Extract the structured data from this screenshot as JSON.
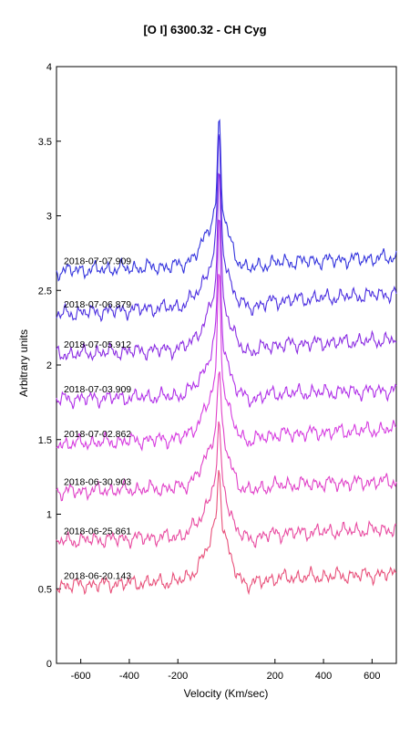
{
  "chart_data": {
    "type": "line",
    "title": "[O I] 6300.32 - CH Cyg",
    "xlabel": "Velocity (Km/sec)",
    "ylabel": "Arbitrary units",
    "xlim": [
      -700,
      700
    ],
    "ylim": [
      0,
      4
    ],
    "xticks": [
      -600,
      -400,
      -200,
      200,
      400,
      600
    ],
    "yticks": [
      0,
      0.5,
      1,
      1.5,
      2,
      2.5,
      3,
      3.5,
      4
    ],
    "xtick_labels": [
      "-600",
      "-400",
      "-200",
      "200",
      "400",
      "600"
    ],
    "ytick_labels": [
      "0",
      "0.5",
      "1",
      "1.5",
      "2",
      "2.5",
      "3",
      "3.5",
      "4"
    ],
    "grid": false,
    "legend": "none",
    "series": [
      {
        "name": "2018-07-07.909",
        "color": "#3333dd",
        "baseline": 2.63,
        "peak": 1.02,
        "tail": 2.72,
        "seed": 11
      },
      {
        "name": "2018-07-06.879",
        "color": "#4b2ee0",
        "baseline": 2.34,
        "peak": 1.2,
        "tail": 2.48,
        "seed": 23
      },
      {
        "name": "2018-07-05.912",
        "color": "#8a2be2",
        "baseline": 2.07,
        "peak": 1.25,
        "tail": 2.17,
        "seed": 37
      },
      {
        "name": "2018-07-03.909",
        "color": "#b030e8",
        "baseline": 1.77,
        "peak": 1.23,
        "tail": 1.83,
        "seed": 41
      },
      {
        "name": "2018-07-02.862",
        "color": "#d63ce0",
        "baseline": 1.47,
        "peak": 1.2,
        "tail": 1.57,
        "seed": 53
      },
      {
        "name": "2018-06-30.903",
        "color": "#e040c8",
        "baseline": 1.15,
        "peak": 0.84,
        "tail": 1.22,
        "seed": 67
      },
      {
        "name": "2018-06-25.861",
        "color": "#e84aa0",
        "baseline": 0.82,
        "peak": 0.76,
        "tail": 0.9,
        "seed": 79
      },
      {
        "name": "2018-06-20.143",
        "color": "#e8507a",
        "baseline": 0.52,
        "peak": 0.8,
        "tail": 0.6,
        "seed": 89
      }
    ]
  }
}
